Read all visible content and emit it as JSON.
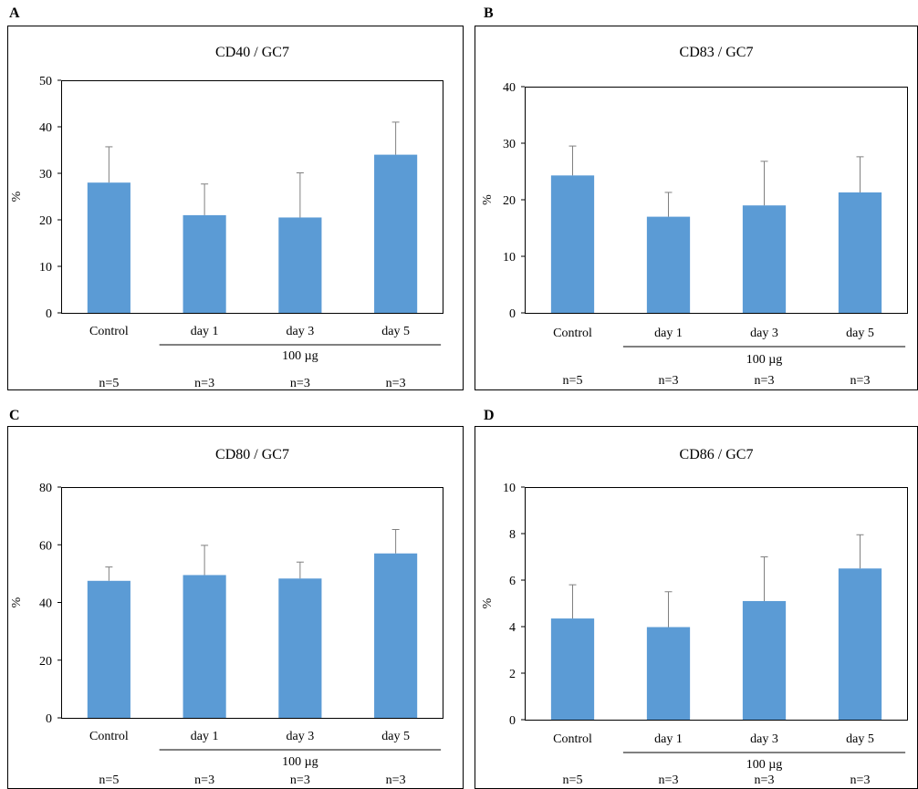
{
  "panels": [
    {
      "letter": "A",
      "title": "CD40 / GC7",
      "ylabel": "%",
      "group_label": "100 µg"
    },
    {
      "letter": "B",
      "title": "CD83 / GC7",
      "ylabel": "%",
      "group_label": "100 µg"
    },
    {
      "letter": "C",
      "title": "CD80 / GC7",
      "ylabel": "%",
      "group_label": "100 µg"
    },
    {
      "letter": "D",
      "title": "CD86 / GC7",
      "ylabel": "%",
      "group_label": "100 µg"
    }
  ],
  "colors": {
    "bar": "#5b9bd5",
    "error": "#808080",
    "axis": "#000000"
  },
  "chart_data": [
    {
      "type": "bar",
      "title": "CD40 / GC7",
      "ylabel": "%",
      "xlabel": "",
      "categories": [
        "Control",
        "day 1",
        "day 3",
        "day 5"
      ],
      "values": [
        28,
        21,
        20.5,
        34
      ],
      "errors": [
        7.7,
        6.7,
        9.6,
        7.0
      ],
      "ylim": [
        0,
        50
      ],
      "yticks": [
        0,
        10,
        20,
        30,
        40,
        50
      ],
      "n_labels": [
        "n=5",
        "n=3",
        "n=3",
        "n=3"
      ],
      "group_label": "100 µg",
      "grid": false
    },
    {
      "type": "bar",
      "title": "CD83 / GC7",
      "ylabel": "%",
      "xlabel": "",
      "categories": [
        "Control",
        "day 1",
        "day 3",
        "day 5"
      ],
      "values": [
        24.3,
        17,
        19,
        21.3
      ],
      "errors": [
        5.2,
        4.3,
        7.8,
        6.3
      ],
      "ylim": [
        0,
        40
      ],
      "yticks": [
        0,
        10,
        20,
        30,
        40
      ],
      "n_labels": [
        "n=5",
        "n=3",
        "n=3",
        "n=3"
      ],
      "group_label": "100 µg",
      "grid": false
    },
    {
      "type": "bar",
      "title": "CD80 / GC7",
      "ylabel": "%",
      "xlabel": "",
      "categories": [
        "Control",
        "day 1",
        "day 3",
        "day 5"
      ],
      "values": [
        47.5,
        49.5,
        48.3,
        57
      ],
      "errors": [
        4.8,
        10.3,
        5.7,
        8.3
      ],
      "ylim": [
        0,
        80
      ],
      "yticks": [
        0,
        20,
        40,
        60,
        80
      ],
      "n_labels": [
        "n=5",
        "n=3",
        "n=3",
        "n=3"
      ],
      "group_label": "100 µg",
      "grid": false
    },
    {
      "type": "bar",
      "title": "CD86 / GC7",
      "ylabel": "%",
      "xlabel": "",
      "categories": [
        "Control",
        "day 1",
        "day 3",
        "day 5"
      ],
      "values": [
        4.35,
        3.98,
        5.1,
        6.5
      ],
      "errors": [
        1.45,
        1.52,
        1.9,
        1.45
      ],
      "ylim": [
        0,
        10
      ],
      "yticks": [
        0,
        2,
        4,
        6,
        8,
        10
      ],
      "n_labels": [
        "n=5",
        "n=3",
        "n=3",
        "n=3"
      ],
      "group_label": "100 µg",
      "grid": false
    }
  ]
}
